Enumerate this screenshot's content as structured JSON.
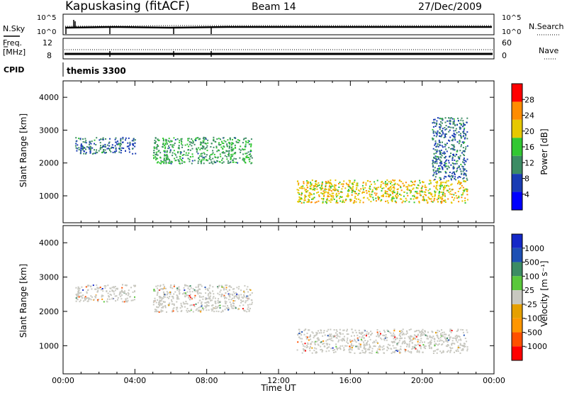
{
  "header": {
    "radar": "Kapuskasing (fitACF)",
    "beam": "Beam 14",
    "date": "27/Dec/2009"
  },
  "noise_panel": {
    "left_label": "N.Sky",
    "left_ticks": [
      "10^5",
      "10^0"
    ],
    "right_label": "N.Search",
    "right_ticks": [
      "10^5",
      "10^0"
    ]
  },
  "freq_panel": {
    "left_label_1": "Freq.",
    "left_label_2": "[MHz]",
    "left_ticks": [
      "12",
      "8"
    ],
    "right_label": "Nave",
    "right_ticks": [
      "60",
      "0"
    ]
  },
  "cpid_panel": {
    "label": "CPID",
    "value": "themis 3300"
  },
  "legend_power": {
    "title": "Power [dB]",
    "ticks": [
      "28",
      "24",
      "20",
      "16",
      "12",
      "8",
      "4"
    ],
    "colors": [
      "#0000ff",
      "#1a3cb4",
      "#3c8c64",
      "#32c832",
      "#e6c800",
      "#ff8c00",
      "#ff0000"
    ]
  },
  "legend_velocity": {
    "title": "Velocity [m s⁻¹]",
    "ticks": [
      "1000",
      "500",
      "100",
      "25",
      "-25",
      "-100",
      "-500",
      "-1000"
    ],
    "colors": [
      "#ff0000",
      "#ff5000",
      "#ff9600",
      "#e6a000",
      "#c8c8c0",
      "#5ac83c",
      "#3c8c64",
      "#1e50b4",
      "#1428c8"
    ]
  },
  "chart_data": [
    {
      "type": "heatmap",
      "name_on_chart": "",
      "ylabel": "Slant Range [km]",
      "yticks": [
        "4000",
        "3000",
        "2000",
        "1000"
      ],
      "ylim": [
        180,
        4500
      ],
      "xlim_hours": [
        0,
        24
      ],
      "colorbar": "Power [dB]",
      "regions": [
        {
          "t_start": "00:40",
          "t_end": "04:00",
          "range_km": [
            2300,
            2800
          ],
          "power_db": 8
        },
        {
          "t_start": "05:00",
          "t_end": "10:30",
          "range_km": [
            2000,
            2800
          ],
          "power_db": 12
        },
        {
          "t_start": "13:00",
          "t_end": "22:30",
          "range_km": [
            800,
            1500
          ],
          "power_db": 20
        },
        {
          "t_start": "20:30",
          "t_end": "22:30",
          "range_km": [
            1500,
            3400
          ],
          "power_db": 8
        }
      ]
    },
    {
      "type": "heatmap",
      "ylabel": "Slant Range [km]",
      "yticks": [
        "4000",
        "3000",
        "2000",
        "1000"
      ],
      "ylim": [
        180,
        4500
      ],
      "xlim_hours": [
        0,
        24
      ],
      "xticks": [
        "00:00",
        "04:00",
        "08:00",
        "12:00",
        "16:00",
        "20:00",
        "00:00"
      ],
      "xlabel": "Time UT",
      "colorbar": "Velocity [m s⁻¹]",
      "regions": [
        {
          "t_start": "00:40",
          "t_end": "04:00",
          "range_km": [
            2300,
            2800
          ],
          "velocity": 0
        },
        {
          "t_start": "05:00",
          "t_end": "10:30",
          "range_km": [
            2000,
            2800
          ],
          "velocity": 0
        },
        {
          "t_start": "13:00",
          "t_end": "22:30",
          "range_km": [
            800,
            1500
          ],
          "velocity": 0
        }
      ]
    }
  ]
}
